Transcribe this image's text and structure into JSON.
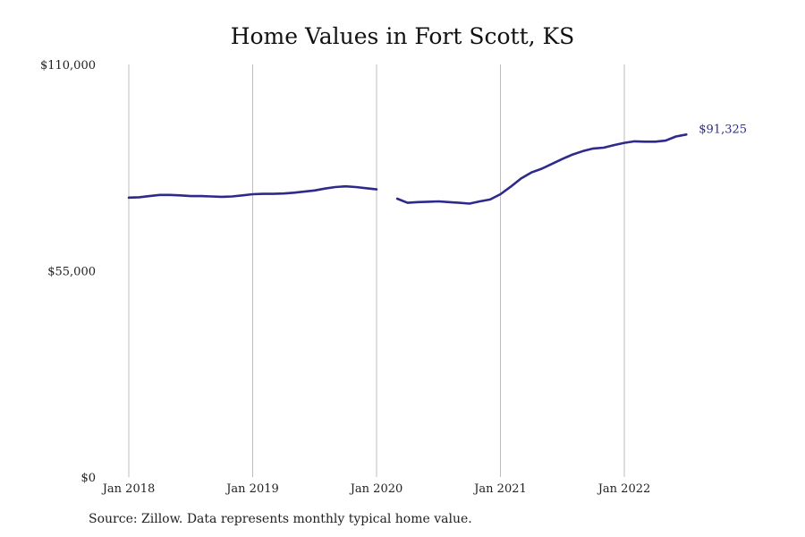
{
  "chart_data": {
    "type": "line",
    "title": "Home Values in Fort Scott, KS",
    "source": "Source: Zillow. Data represents monthly typical home value.",
    "xlabel": "",
    "ylabel": "",
    "ylim": [
      0,
      110000
    ],
    "yticks": [
      {
        "value": 0,
        "label": "$0"
      },
      {
        "value": 55000,
        "label": "$55,000"
      },
      {
        "value": 110000,
        "label": "$110,000"
      }
    ],
    "xticks": [
      {
        "value": "2018-01",
        "label": "Jan 2018"
      },
      {
        "value": "2019-01",
        "label": "Jan 2019"
      },
      {
        "value": "2020-01",
        "label": "Jan 2020"
      },
      {
        "value": "2021-01",
        "label": "Jan 2021"
      },
      {
        "value": "2022-01",
        "label": "Jan 2022"
      }
    ],
    "grid": "vertical",
    "line_color": "#2e2a8c",
    "end_label": "$91,325",
    "series": [
      {
        "segments": [
          [
            {
              "x": "2018-01",
              "y": 74500
            },
            {
              "x": "2018-02",
              "y": 74600
            },
            {
              "x": "2018-03",
              "y": 74900
            },
            {
              "x": "2018-04",
              "y": 75200
            },
            {
              "x": "2018-05",
              "y": 75200
            },
            {
              "x": "2018-06",
              "y": 75100
            },
            {
              "x": "2018-07",
              "y": 74900
            },
            {
              "x": "2018-08",
              "y": 74900
            },
            {
              "x": "2018-09",
              "y": 74800
            },
            {
              "x": "2018-10",
              "y": 74700
            },
            {
              "x": "2018-11",
              "y": 74800
            },
            {
              "x": "2018-12",
              "y": 75100
            },
            {
              "x": "2019-01",
              "y": 75400
            },
            {
              "x": "2019-02",
              "y": 75500
            },
            {
              "x": "2019-03",
              "y": 75500
            },
            {
              "x": "2019-04",
              "y": 75600
            },
            {
              "x": "2019-05",
              "y": 75800
            },
            {
              "x": "2019-06",
              "y": 76100
            },
            {
              "x": "2019-07",
              "y": 76400
            },
            {
              "x": "2019-08",
              "y": 76900
            },
            {
              "x": "2019-09",
              "y": 77300
            },
            {
              "x": "2019-10",
              "y": 77500
            },
            {
              "x": "2019-11",
              "y": 77300
            },
            {
              "x": "2019-12",
              "y": 77000
            },
            {
              "x": "2020-01",
              "y": 76700
            }
          ],
          [
            {
              "x": "2020-03",
              "y": 74200
            },
            {
              "x": "2020-04",
              "y": 73100
            },
            {
              "x": "2020-05",
              "y": 73300
            },
            {
              "x": "2020-06",
              "y": 73400
            },
            {
              "x": "2020-07",
              "y": 73500
            },
            {
              "x": "2020-08",
              "y": 73300
            },
            {
              "x": "2020-09",
              "y": 73100
            },
            {
              "x": "2020-10",
              "y": 72900
            },
            {
              "x": "2020-11",
              "y": 73500
            },
            {
              "x": "2020-12",
              "y": 74000
            },
            {
              "x": "2021-01",
              "y": 75400
            },
            {
              "x": "2021-02",
              "y": 77400
            },
            {
              "x": "2021-03",
              "y": 79600
            },
            {
              "x": "2021-04",
              "y": 81200
            },
            {
              "x": "2021-05",
              "y": 82200
            },
            {
              "x": "2021-06",
              "y": 83500
            },
            {
              "x": "2021-07",
              "y": 84800
            },
            {
              "x": "2021-08",
              "y": 86000
            },
            {
              "x": "2021-09",
              "y": 86900
            },
            {
              "x": "2021-10",
              "y": 87600
            },
            {
              "x": "2021-11",
              "y": 87800
            },
            {
              "x": "2021-12",
              "y": 88500
            },
            {
              "x": "2022-01",
              "y": 89100
            },
            {
              "x": "2022-02",
              "y": 89500
            },
            {
              "x": "2022-03",
              "y": 89400
            },
            {
              "x": "2022-04",
              "y": 89400
            },
            {
              "x": "2022-05",
              "y": 89700
            },
            {
              "x": "2022-06",
              "y": 90800
            },
            {
              "x": "2022-07",
              "y": 91325
            }
          ]
        ]
      }
    ]
  }
}
